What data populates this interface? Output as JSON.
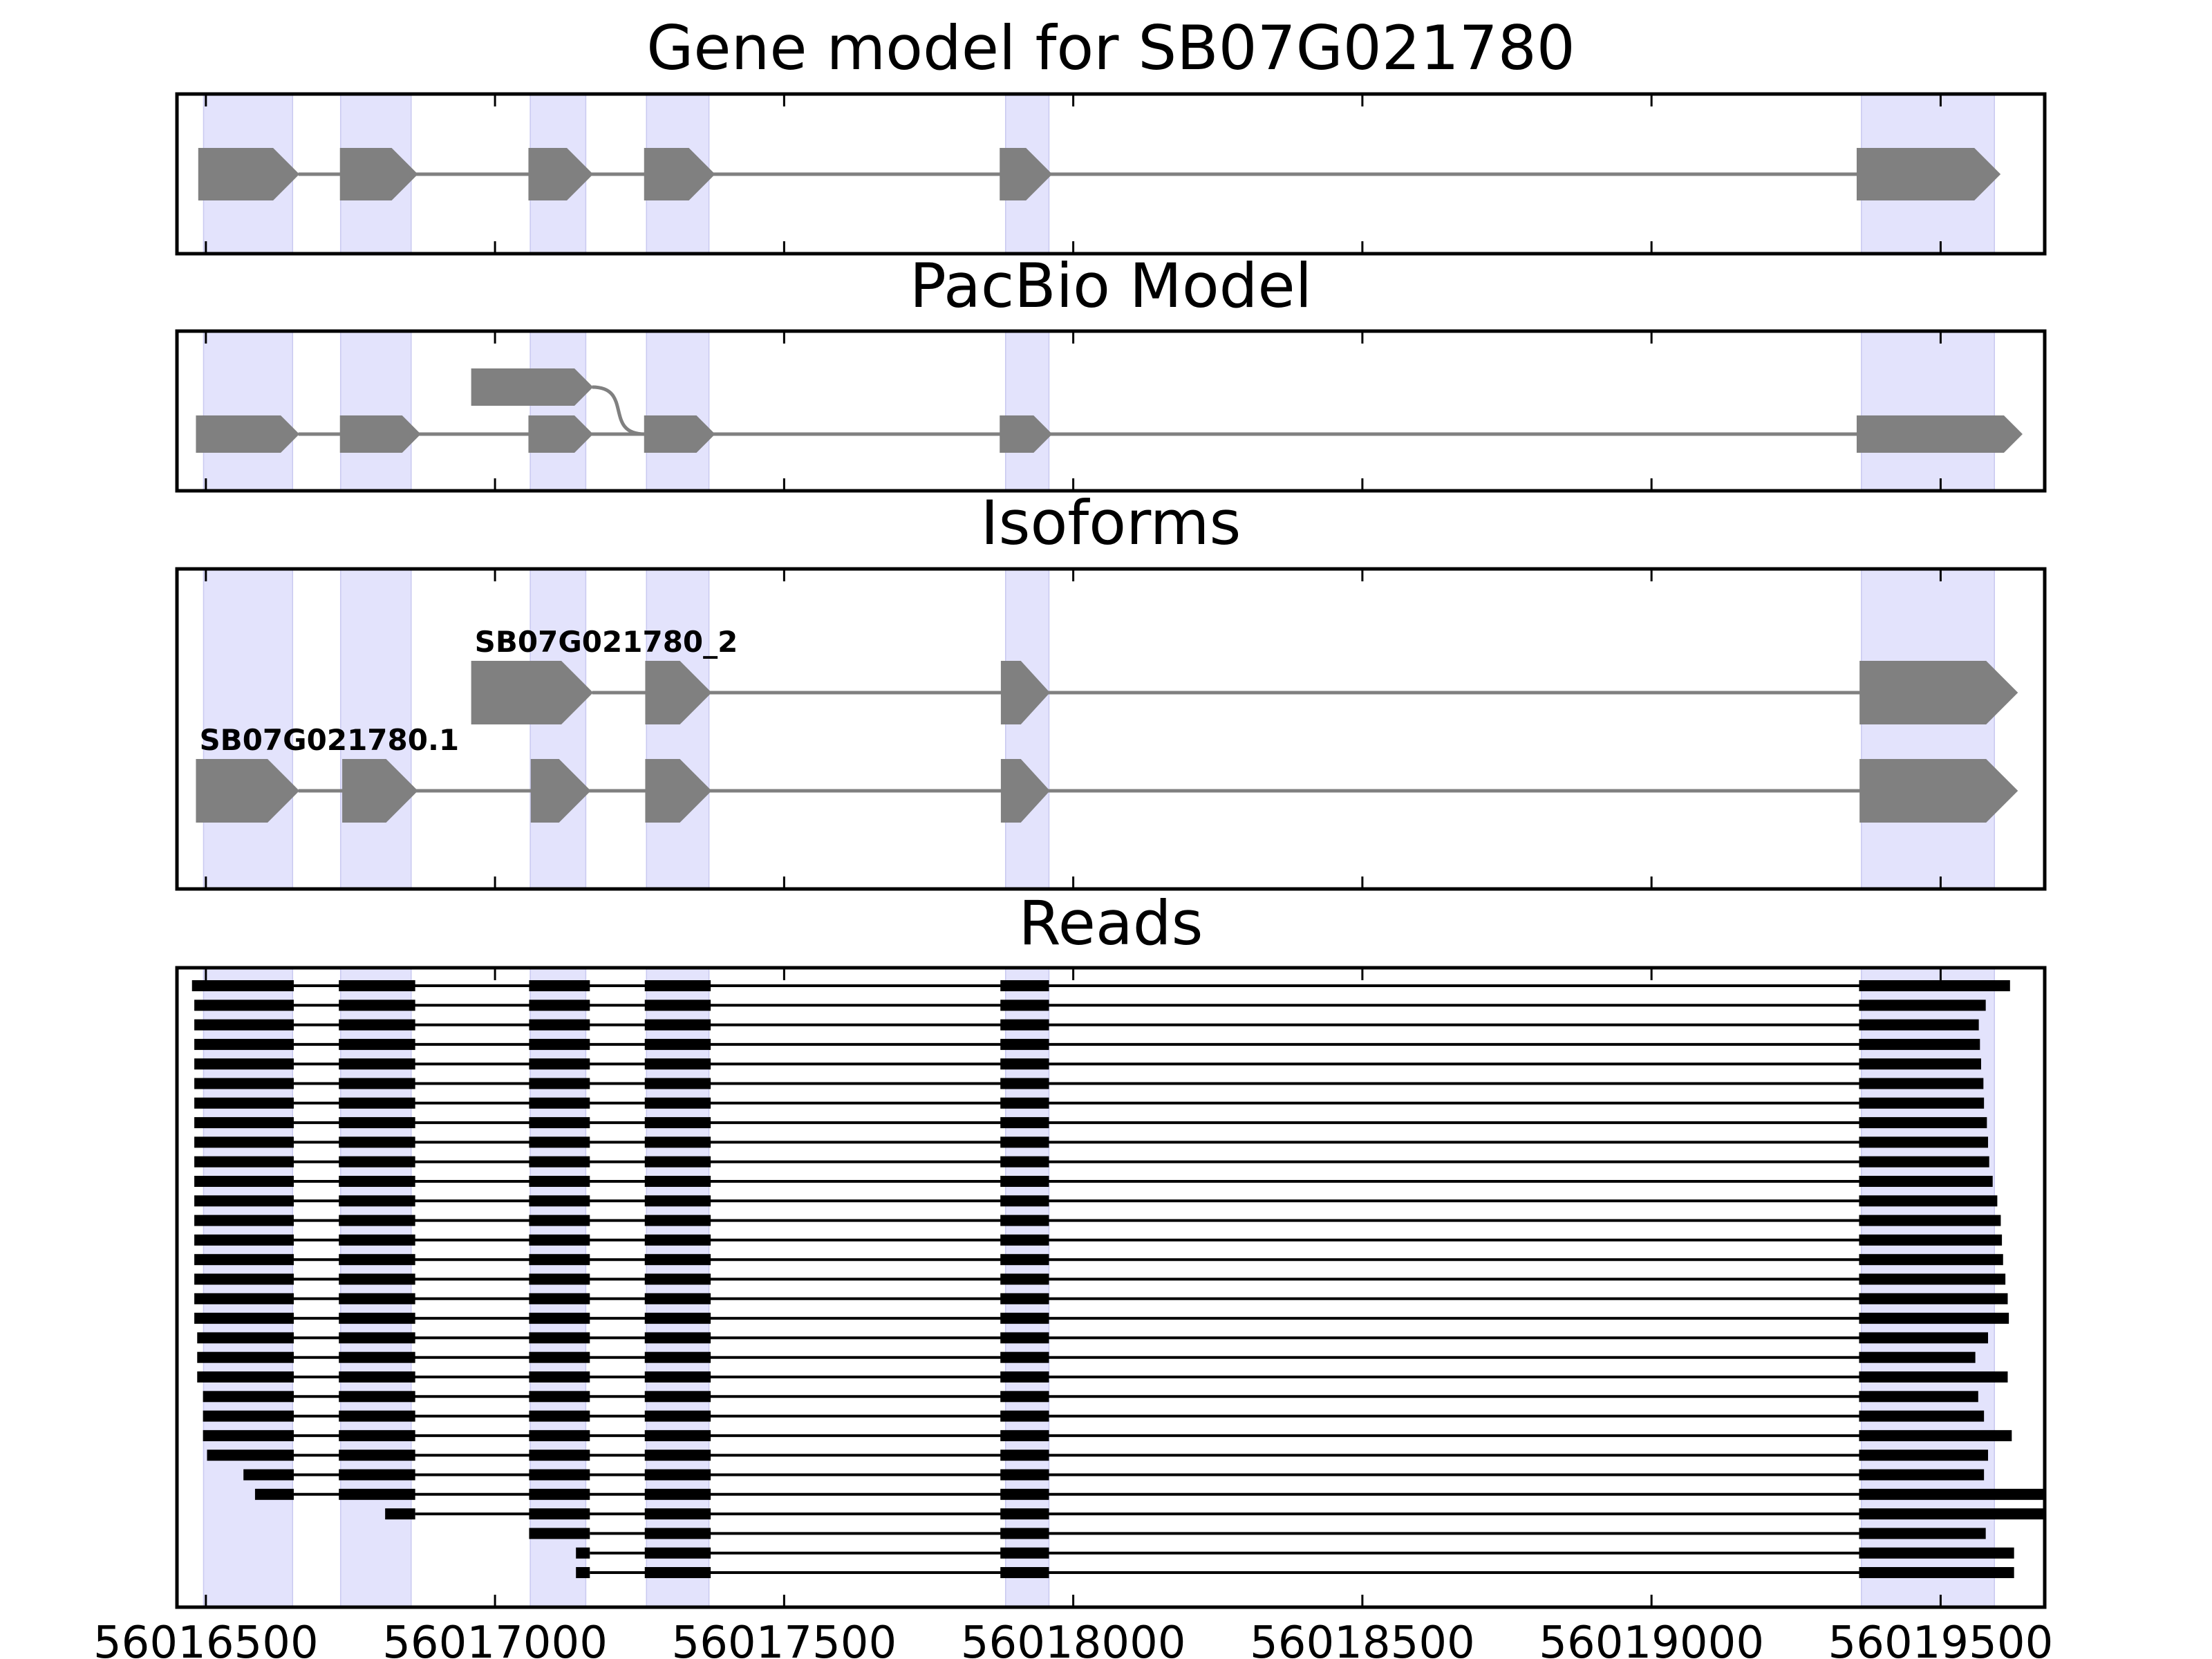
{
  "chart_data": {
    "type": "gene-track",
    "xlim": [
      56016450,
      56019680
    ],
    "x_ticks": [
      56016500,
      56017000,
      56017500,
      56018000,
      56018500,
      56019000,
      56019500
    ],
    "x_tick_labels": [
      "56016500",
      "56017000",
      "56017500",
      "56018000",
      "56018500",
      "56019000",
      "56019500"
    ],
    "exon_regions": [
      [
        56016496,
        56016650
      ],
      [
        56016733,
        56016855
      ],
      [
        56017061,
        56017157
      ],
      [
        56017262,
        56017370
      ],
      [
        56017883,
        56017958
      ],
      [
        56019363,
        56019593
      ]
    ],
    "highlight_color": "#e3e3fc",
    "feature_color": "#808080",
    "read_color": "#000000",
    "panels": [
      {
        "title": "Gene model for SB07G021780",
        "tracks": [
          {
            "label": "",
            "exons": [
              [
                56016488,
                56016660
              ],
              [
                56016733,
                56016865
              ],
              [
                56017059,
                56017168
              ],
              [
                56017259,
                56017379
              ],
              [
                56017874,
                56017962
              ],
              [
                56019356,
                56019602
              ]
            ]
          }
        ]
      },
      {
        "title": "PacBio Model",
        "tracks": [
          {
            "label": "",
            "exons": [
              [
                56016484,
                56016660
              ],
              [
                56016733,
                56016870
              ],
              [
                56017059,
                56017168
              ],
              [
                56017259,
                56017379
              ],
              [
                56017874,
                56017962
              ],
              [
                56019356,
                56019640
              ]
            ]
          },
          {
            "label": "",
            "exons": [
              [
                56016960,
                56017168
              ]
            ],
            "curve_to": 56017259
          }
        ]
      },
      {
        "title": "Isoforms",
        "tracks": [
          {
            "label": "SB07G021780_2",
            "exons": [
              [
                56016960,
                56017168
              ],
              [
                56017261,
                56017373
              ],
              [
                56017876,
                56017958
              ],
              [
                56019361,
                56019632
              ]
            ]
          },
          {
            "label": "SB07G021780.1",
            "exons": [
              [
                56016484,
                56016660
              ],
              [
                56016737,
                56016865
              ],
              [
                56017063,
                56017164
              ],
              [
                56017261,
                56017373
              ],
              [
                56017876,
                56017958
              ],
              [
                56019361,
                56019632
              ]
            ]
          }
        ]
      },
      {
        "title": "Reads",
        "reads_end": [
          56019620,
          56019578,
          56019566,
          56019568,
          56019570,
          56019574,
          56019575,
          56019580,
          56019582,
          56019584,
          56019590,
          56019598,
          56019604,
          56019606,
          56019608,
          56019612,
          56019616,
          56019618,
          56019582,
          56019560,
          56019616,
          56019565,
          56019575,
          56019623,
          56019582,
          56019575,
          56019680,
          56019677,
          56019578,
          56019627,
          56019627
        ],
        "reads_start": [
          56016475,
          56016480,
          56016480,
          56016480,
          56016480,
          56016480,
          56016480,
          56016480,
          56016480,
          56016480,
          56016480,
          56016480,
          56016480,
          56016480,
          56016480,
          56016480,
          56016480,
          56016480,
          56016485,
          56016485,
          56016485,
          56016495,
          56016495,
          56016495,
          56016502,
          56016565,
          56016585,
          56016810,
          56016960,
          56017140,
          56017140
        ]
      }
    ]
  }
}
